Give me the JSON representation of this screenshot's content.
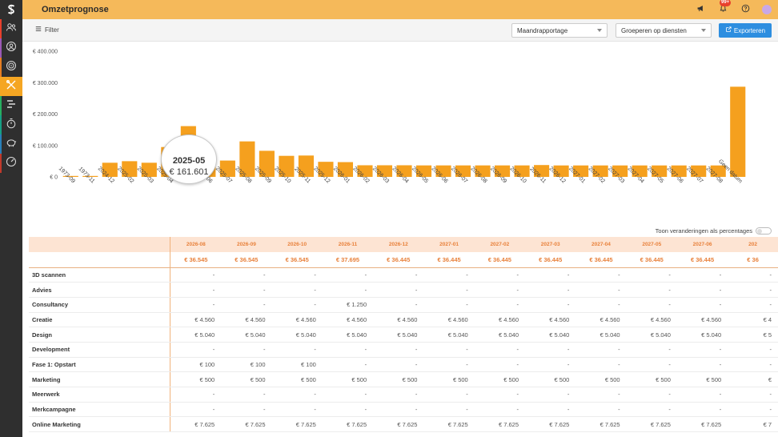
{
  "header": {
    "title": "Omzetprognose",
    "notification_badge": "99+"
  },
  "toolbar": {
    "filter_label": "Filter",
    "report_select": "Maandrapportage",
    "group_select": "Groeperen op diensten",
    "export_label": "Exporteren"
  },
  "sidebar": {
    "items": [
      {
        "icon": "users-icon"
      },
      {
        "icon": "user-circle-icon"
      },
      {
        "icon": "target-icon"
      },
      {
        "icon": "tools-icon",
        "active": true
      },
      {
        "icon": "timeline-icon"
      },
      {
        "icon": "stopwatch-icon"
      },
      {
        "icon": "piggy-bank-icon"
      },
      {
        "icon": "dashboard-icon"
      }
    ]
  },
  "chart_data": {
    "type": "bar",
    "ylim": [
      0,
      400000
    ],
    "yticks": [
      "€ 0",
      "€ 100.000",
      "€ 200.000",
      "€ 300.000",
      "€ 400.000"
    ],
    "categories": [
      "1973-09",
      "1973-11",
      "2024-12",
      "2025-02",
      "2025-03",
      "2025-04",
      "2025-05",
      "2025-06",
      "2025-07",
      "2025-08",
      "2025-09",
      "2025-10",
      "2025-11",
      "2025-12",
      "2026-01",
      "2026-02",
      "2026-03",
      "2026-04",
      "2026-05",
      "2026-06",
      "2026-07",
      "2026-08",
      "2026-09",
      "2026-10",
      "2026-11",
      "2026-12",
      "2027-01",
      "2027-02",
      "2027-03",
      "2027-04",
      "2027-05",
      "2027-06",
      "2027-07",
      "2027-08",
      "Geen datum"
    ],
    "values": [
      3000,
      3000,
      45000,
      50000,
      45000,
      95000,
      161601,
      60000,
      52000,
      113000,
      83000,
      67000,
      68000,
      48000,
      47000,
      37000,
      37000,
      37000,
      36545,
      36545,
      36545,
      36545,
      36545,
      36545,
      37695,
      36445,
      36445,
      36445,
      36445,
      36445,
      36445,
      36445,
      36445,
      36445,
      287000
    ],
    "color": "#f5a01e",
    "tooltip": {
      "label": "2025-05",
      "value": "€ 161.601"
    }
  },
  "toggle_label": "Toon veranderingen als percentages",
  "table": {
    "columns": [
      "2026-08",
      "2026-09",
      "2026-10",
      "2026-11",
      "2026-12",
      "2027-01",
      "2027-02",
      "2027-03",
      "2027-04",
      "2027-05",
      "2027-06",
      "202"
    ],
    "totals": [
      "€ 36.545",
      "€ 36.545",
      "€ 36.545",
      "€ 37.695",
      "€ 36.445",
      "€ 36.445",
      "€ 36.445",
      "€ 36.445",
      "€ 36.445",
      "€ 36.445",
      "€ 36.445",
      "€ 36"
    ],
    "rows": [
      {
        "label": "3D scannen",
        "values": [
          "-",
          "-",
          "-",
          "-",
          "-",
          "-",
          "-",
          "-",
          "-",
          "-",
          "-",
          "-"
        ]
      },
      {
        "label": "Advies",
        "values": [
          "-",
          "-",
          "-",
          "-",
          "-",
          "-",
          "-",
          "-",
          "-",
          "-",
          "-",
          "-"
        ]
      },
      {
        "label": "Consultancy",
        "values": [
          "-",
          "-",
          "-",
          "€ 1.250",
          "-",
          "-",
          "-",
          "-",
          "-",
          "-",
          "-",
          "-"
        ]
      },
      {
        "label": "Creatie",
        "values": [
          "€ 4.560",
          "€ 4.560",
          "€ 4.560",
          "€ 4.560",
          "€ 4.560",
          "€ 4.560",
          "€ 4.560",
          "€ 4.560",
          "€ 4.560",
          "€ 4.560",
          "€ 4.560",
          "€ 4"
        ]
      },
      {
        "label": "Design",
        "values": [
          "€ 5.040",
          "€ 5.040",
          "€ 5.040",
          "€ 5.040",
          "€ 5.040",
          "€ 5.040",
          "€ 5.040",
          "€ 5.040",
          "€ 5.040",
          "€ 5.040",
          "€ 5.040",
          "€ 5"
        ]
      },
      {
        "label": "Development",
        "values": [
          "-",
          "-",
          "-",
          "-",
          "-",
          "-",
          "-",
          "-",
          "-",
          "-",
          "-",
          "-"
        ]
      },
      {
        "label": "Fase 1: Opstart",
        "values": [
          "€ 100",
          "€ 100",
          "€ 100",
          "-",
          "-",
          "-",
          "-",
          "-",
          "-",
          "-",
          "-",
          "-"
        ]
      },
      {
        "label": "Marketing",
        "values": [
          "€ 500",
          "€ 500",
          "€ 500",
          "€ 500",
          "€ 500",
          "€ 500",
          "€ 500",
          "€ 500",
          "€ 500",
          "€ 500",
          "€ 500",
          "€"
        ]
      },
      {
        "label": "Meerwerk",
        "values": [
          "-",
          "-",
          "-",
          "-",
          "-",
          "-",
          "-",
          "-",
          "-",
          "-",
          "-",
          "-"
        ]
      },
      {
        "label": "Merkcampagne",
        "values": [
          "-",
          "-",
          "-",
          "-",
          "-",
          "-",
          "-",
          "-",
          "-",
          "-",
          "-",
          "-"
        ]
      },
      {
        "label": "Online Marketing",
        "values": [
          "€ 7.625",
          "€ 7.625",
          "€ 7.625",
          "€ 7.625",
          "€ 7.625",
          "€ 7.625",
          "€ 7.625",
          "€ 7.625",
          "€ 7.625",
          "€ 7.625",
          "€ 7.625",
          "€ 7"
        ]
      }
    ]
  }
}
